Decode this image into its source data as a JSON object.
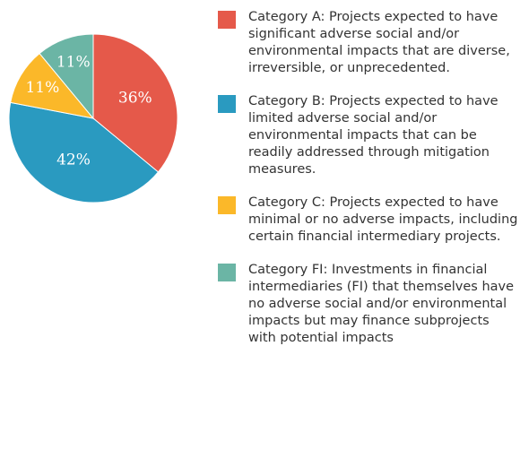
{
  "chart_data": {
    "type": "pie",
    "categories": [
      "Category A: Projects expected to have significant adverse social and/or environmental impacts that are diverse, irreversible, or unprecedented.",
      "Category B: Projects expected to have limited adverse social and/or environmental impacts that can be readily addressed through mitigation measures.",
      "Category C: Projects expected to have minimal or no adverse impacts, including certain financial intermediary projects.",
      "Category FI: Investments in financial intermediaries (FI) that themselves have no adverse social and/or environmental impacts but may finance subprojects with potential impacts"
    ],
    "values": [
      36,
      42,
      11,
      11
    ],
    "value_labels": [
      "36%",
      "42%",
      "11%",
      "11%"
    ],
    "colors": [
      "#e5594a",
      "#2a9ac0",
      "#fbb829",
      "#6bb5a5"
    ]
  }
}
